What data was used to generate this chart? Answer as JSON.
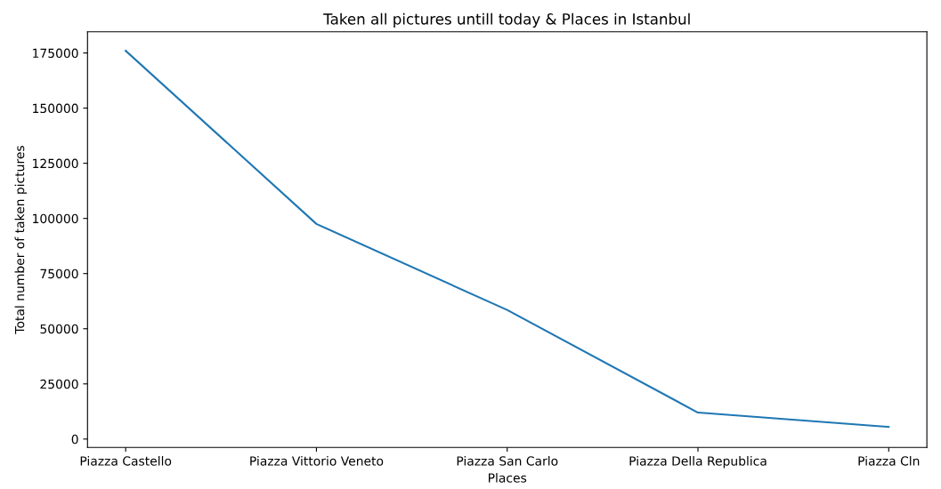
{
  "chart_data": {
    "type": "line",
    "title": "Taken all pictures untill today & Places in Istanbul",
    "xlabel": "Places",
    "ylabel": "Total number of taken pictures",
    "categories": [
      "Piazza Castello",
      "Piazza Vittorio Veneto",
      "Piazza San Carlo",
      "Piazza Della Republica",
      "Piazza Cln"
    ],
    "series": [
      {
        "color": "#1f77b4",
        "values": [
          176000,
          97500,
          58500,
          12000,
          5500
        ]
      }
    ],
    "ylim": [
      -3800,
      184600
    ],
    "yticks": [
      0,
      25000,
      50000,
      75000,
      100000,
      125000,
      150000,
      175000
    ],
    "grid": false,
    "legend": false,
    "marker": "none",
    "line_style": "solid"
  }
}
